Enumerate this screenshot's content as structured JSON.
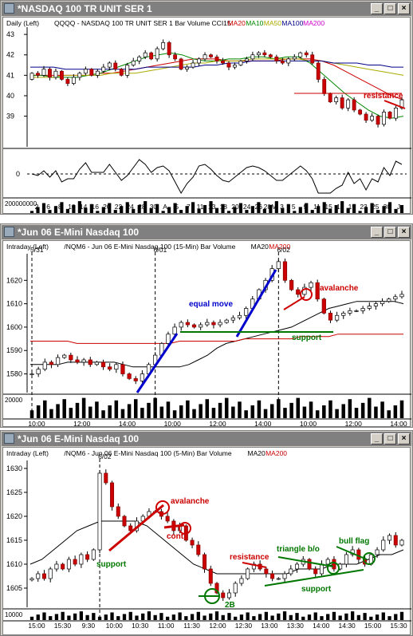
{
  "windows": [
    {
      "title": "*NASDAQ 100 TR UNIT SER 1",
      "legend": [
        {
          "text": "Daily  (Left)",
          "color": "#000000"
        },
        {
          "text": "QQQQ - NASDAQ 100 TR UNIT SER 1  Bar  Volume  CCI15",
          "color": "#000000"
        },
        {
          "text": "MA20",
          "color": "#cc0000"
        },
        {
          "text": "MA10",
          "color": "#008800"
        },
        {
          "text": "MA50",
          "color": "#aaaa00"
        },
        {
          "text": "MA100",
          "color": "#000088"
        },
        {
          "text": "MA200",
          "color": "#cc00cc"
        }
      ],
      "volume_scale_label": "200000000"
    },
    {
      "title": "*Jun 06  E-Mini Nasdaq 100",
      "legend": [
        {
          "text": "Intraday  (Left)",
          "color": "#000000"
        },
        {
          "text": "/NQM6 - Jun 06  E-Mini Nasdaq 100 (15-Min)  Bar  Volume",
          "color": "#000000"
        },
        {
          "text": "MA20",
          "color": "#000000"
        },
        {
          "text": "MA200",
          "color": "#cc0000"
        }
      ],
      "volume_scale_label": "20000"
    },
    {
      "title": "*Jun 06  E-Mini Nasdaq 100",
      "legend": [
        {
          "text": "Intraday  (Left)",
          "color": "#000000"
        },
        {
          "text": "/NQM6 - Jun 06  E-Mini Nasdaq 100 (5-Min)  Bar  Volume",
          "color": "#000000"
        },
        {
          "text": "MA20",
          "color": "#000000"
        },
        {
          "text": "MA200",
          "color": "#cc0000"
        }
      ],
      "volume_scale_label": "10000"
    }
  ],
  "window_buttons": [
    "_",
    "□",
    "×"
  ],
  "chart_data": [
    {
      "type": "candlestick",
      "ylim": [
        37.5,
        43.2
      ],
      "yticks": [
        43,
        42,
        41,
        40,
        39
      ],
      "xlabels": [
        "2",
        "6",
        "8",
        "10",
        "14",
        "16",
        "20",
        "22",
        "24",
        "28",
        "30",
        "A",
        "5",
        "7",
        "11",
        "13",
        "18",
        "20",
        "24",
        "26",
        "28M",
        "3",
        "5",
        "9",
        "11",
        "15",
        "17",
        "19",
        "23",
        "25",
        "30",
        "J"
      ],
      "closes": [
        41.1,
        41.0,
        41.3,
        40.9,
        41.2,
        40.8,
        40.6,
        40.9,
        41.1,
        41.3,
        41.0,
        41.2,
        41.4,
        41.6,
        41.3,
        41.0,
        41.5,
        41.7,
        41.9,
        42.1,
        41.8,
        42.3,
        42.6,
        42.0,
        41.8,
        41.3,
        41.4,
        41.6,
        41.8,
        42.0,
        41.9,
        41.7,
        41.6,
        41.4,
        41.5,
        41.7,
        41.8,
        42.0,
        42.1,
        42.0,
        41.9,
        41.7,
        41.6,
        41.8,
        41.9,
        42.1,
        42.0,
        41.6,
        40.8,
        40.1,
        39.7,
        39.9,
        39.4,
        39.8,
        39.3,
        39.1,
        38.8,
        39.0,
        38.6,
        39.2,
        38.9,
        39.4,
        39.8
      ],
      "ma_lines": [
        {
          "name": "MA20",
          "color": "#cc0000",
          "values": [
            41.0,
            41.0,
            41.0,
            41.0,
            41.0,
            41.0,
            41.1,
            41.1,
            41.2,
            41.3,
            41.4,
            41.5,
            41.6,
            41.7,
            41.8,
            41.8,
            41.8,
            41.7,
            41.7,
            41.7,
            41.7,
            41.7,
            41.8,
            41.8,
            41.8,
            41.7,
            41.5,
            41.2,
            40.9,
            40.6,
            40.3,
            40.0,
            39.8
          ]
        },
        {
          "name": "MA10",
          "color": "#008800",
          "values": [
            41.0,
            41.0,
            40.9,
            40.9,
            40.9,
            41.0,
            41.1,
            41.3,
            41.5,
            41.7,
            41.9,
            42.0,
            42.1,
            42.0,
            41.8,
            41.7,
            41.7,
            41.8,
            41.8,
            41.9,
            41.9,
            41.8,
            41.9,
            41.9,
            41.6,
            41.1,
            40.6,
            40.1,
            39.7,
            39.3,
            39.0,
            38.9,
            39.0
          ]
        },
        {
          "name": "MA50",
          "color": "#aaaa00",
          "values": [
            40.9,
            40.9,
            40.9,
            41.0,
            41.0,
            41.0,
            41.0,
            41.1,
            41.1,
            41.1,
            41.2,
            41.3,
            41.4,
            41.5,
            41.6,
            41.6,
            41.7,
            41.7,
            41.7,
            41.8,
            41.8,
            41.8,
            41.8,
            41.8,
            41.7,
            41.7,
            41.6,
            41.5,
            41.4,
            41.3,
            41.2,
            41.1,
            41.0
          ]
        },
        {
          "name": "MA100",
          "color": "#000088",
          "values": [
            41.4,
            41.4,
            41.4,
            41.3,
            41.3,
            41.3,
            41.3,
            41.3,
            41.3,
            41.3,
            41.4,
            41.4,
            41.4,
            41.4,
            41.4,
            41.5,
            41.5,
            41.6,
            41.6,
            41.7,
            41.7,
            41.7,
            41.7,
            41.7,
            41.7,
            41.7,
            41.6,
            41.6,
            41.6,
            41.5,
            41.5,
            41.4,
            41.4
          ]
        },
        {
          "name": "MA200",
          "color": "#cc00cc",
          "values": []
        }
      ],
      "annotations": [
        {
          "text": "resistance",
          "color": "#cc0000"
        }
      ],
      "cci_label": "0"
    },
    {
      "type": "candlestick",
      "ylim": [
        1572,
        1630
      ],
      "yticks": [
        1620,
        1610,
        1600,
        1590,
        1580
      ],
      "session_labels": [
        "5/31",
        "6/01",
        "6/02"
      ],
      "xlabels": [
        "10:00",
        "12:00",
        "14:00",
        "10:00",
        "12:00",
        "14:00",
        "10:00",
        "12:00",
        "14:00"
      ],
      "closes": [
        1580,
        1582,
        1585,
        1584,
        1587,
        1588,
        1586,
        1585,
        1586,
        1584,
        1585,
        1583,
        1582,
        1584,
        1580,
        1578,
        1577,
        1580,
        1584,
        1588,
        1593,
        1597,
        1600,
        1602,
        1601,
        1600,
        1601,
        1602,
        1601,
        1602,
        1603,
        1604,
        1605,
        1608,
        1612,
        1616,
        1620,
        1625,
        1628,
        1620,
        1616,
        1614,
        1617,
        1619,
        1612,
        1606,
        1603,
        1605,
        1606,
        1607,
        1607,
        1608,
        1609,
        1610,
        1611,
        1612,
        1613,
        1614
      ],
      "ma_lines": [
        {
          "name": "MA20",
          "color": "#000000",
          "values": [
            1584,
            1584,
            1584,
            1584,
            1585,
            1585,
            1585,
            1585,
            1585,
            1585,
            1584,
            1583,
            1583,
            1583,
            1583,
            1583,
            1583,
            1584,
            1586,
            1588,
            1591,
            1593,
            1594,
            1595,
            1596,
            1597,
            1598,
            1599,
            1600,
            1602,
            1604,
            1606,
            1608,
            1609,
            1610,
            1611,
            1611,
            1611,
            1611,
            1611,
            1610
          ]
        },
        {
          "name": "MA200",
          "color": "#cc0000",
          "values": [
            1594,
            1594,
            1594,
            1594,
            1594,
            1593,
            1593,
            1593,
            1593,
            1593,
            1593,
            1593,
            1593,
            1593,
            1593,
            1593,
            1594,
            1594,
            1594,
            1594,
            1594,
            1594,
            1594,
            1595,
            1595,
            1595,
            1595,
            1595,
            1595,
            1596,
            1596,
            1596,
            1596,
            1597,
            1597,
            1597,
            1597,
            1597,
            1597,
            1597,
            1597
          ]
        }
      ],
      "annotations": [
        {
          "text": "equal move",
          "color": "#0000cc"
        },
        {
          "text": "avalanche",
          "color": "#cc0000"
        },
        {
          "text": "support",
          "color": "#007700"
        }
      ]
    },
    {
      "type": "candlestick",
      "ylim": [
        1601,
        1631
      ],
      "yticks": [
        1630,
        1625,
        1620,
        1615,
        1610,
        1605
      ],
      "session_labels": [
        "6/02"
      ],
      "xlabels": [
        "15:00",
        "15:30",
        "9:30",
        "10:00",
        "10:30",
        "11:00",
        "11:30",
        "12:00",
        "12:30",
        "13:00",
        "13:30",
        "14:00",
        "14:30",
        "15:00",
        "15:30"
      ],
      "closes": [
        1607,
        1608,
        1607,
        1609,
        1610,
        1609,
        1611,
        1610,
        1612,
        1611,
        1613,
        1629,
        1627,
        1622,
        1620,
        1618,
        1617,
        1619,
        1620,
        1621,
        1621,
        1620,
        1619,
        1617,
        1618,
        1615,
        1614,
        1612,
        1609,
        1606,
        1604,
        1603,
        1604,
        1606,
        1607,
        1609,
        1610,
        1609,
        1608,
        1607,
        1607,
        1608,
        1609,
        1610,
        1611,
        1609,
        1608,
        1610,
        1611,
        1609,
        1610,
        1612,
        1613,
        1611,
        1610,
        1612,
        1613,
        1615,
        1616,
        1614,
        1615
      ],
      "ma_lines": [
        {
          "name": "MA20",
          "color": "#000000",
          "values": [
            1610,
            1611,
            1613,
            1615,
            1617,
            1618,
            1619,
            1619,
            1619,
            1619,
            1618,
            1616,
            1614,
            1612,
            1610,
            1609,
            1608,
            1608,
            1608,
            1608,
            1608,
            1608,
            1608,
            1609,
            1609,
            1609,
            1610,
            1610,
            1610,
            1611,
            1612,
            1612,
            1613
          ]
        },
        {
          "name": "MA200",
          "color": "#cc0000",
          "values": []
        }
      ],
      "annotations": [
        {
          "text": "avalanche",
          "color": "#cc0000"
        },
        {
          "text": "support",
          "color": "#007700"
        },
        {
          "text": "cont.",
          "color": "#cc0000"
        },
        {
          "text": "resistance",
          "color": "#cc0000"
        },
        {
          "text": "triangle b/o",
          "color": "#007700"
        },
        {
          "text": "bull flag",
          "color": "#007700"
        },
        {
          "text": "support",
          "color": "#007700"
        },
        {
          "text": "2B",
          "color": "#007700"
        }
      ]
    }
  ]
}
